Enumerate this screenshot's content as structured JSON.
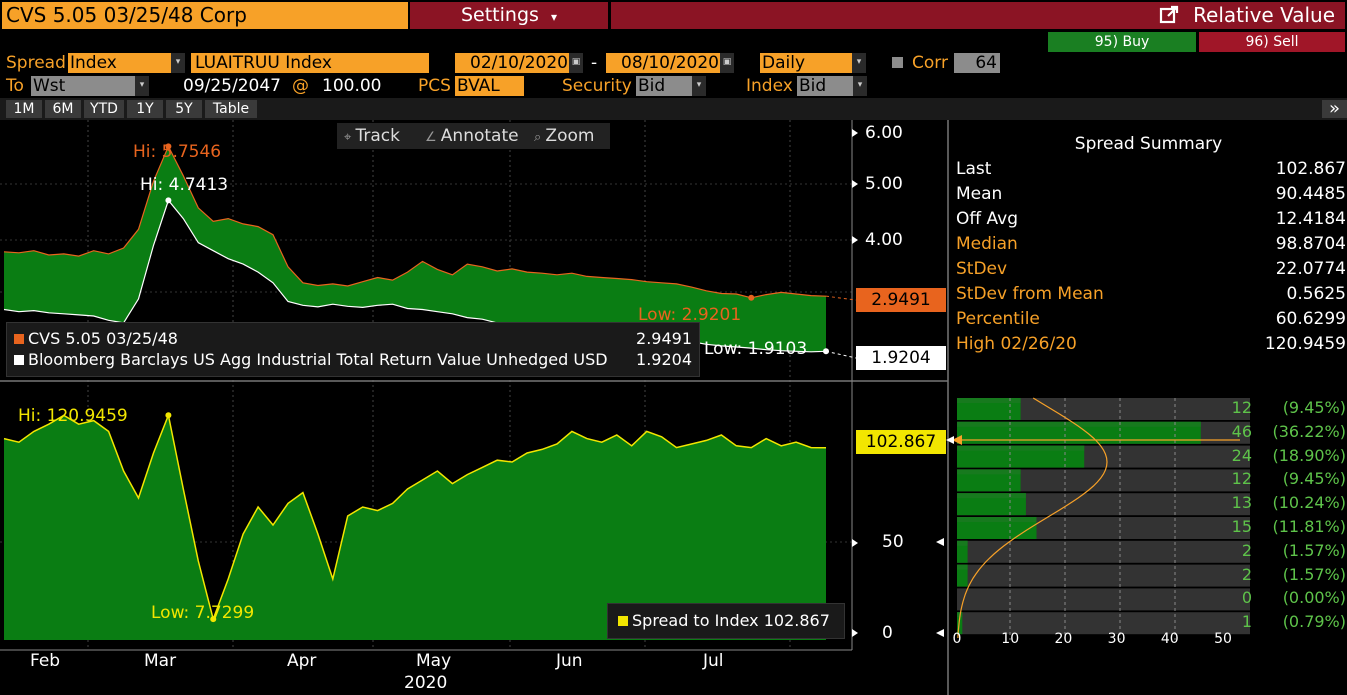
{
  "header": {
    "security": "CVS 5.05 03/25/48 Corp",
    "settings_label": "Settings",
    "settings_caret": "▾",
    "title": "Relative Value",
    "buy_label": "95) Buy",
    "sell_label": "96) Sell"
  },
  "controls": {
    "spread_label": "Spread",
    "spread_type": "Index",
    "index_name": "LUAITRUU Index",
    "start_date": "02/10/2020",
    "date_sep": "-",
    "end_date": "08/10/2020",
    "frequency": "Daily",
    "corr_label": "Corr",
    "corr_value": "64",
    "to_label": "To",
    "to_value": "Wst",
    "maturity": "09/25/2047",
    "at_sign": "@",
    "price": "100.00",
    "pcs_label": "PCS",
    "pcs_value": "BVAL",
    "security_label": "Security",
    "security_side": "Bid",
    "index_label": "Index",
    "index_side": "Bid"
  },
  "range_buttons": [
    "1M",
    "6M",
    "YTD",
    "1Y",
    "5Y",
    "Table"
  ],
  "expand_icon": "»",
  "chart_tools": {
    "track": "Track",
    "annotate": "Annotate",
    "zoom": "Zoom"
  },
  "colors": {
    "cvs": "#e8641e",
    "index": "#ffffff",
    "spread": "#f2e600",
    "fill": "#0a7d13",
    "orange": "#f7a128",
    "buy": "#1a7f22",
    "sell": "#a01628"
  },
  "chart_data": [
    {
      "type": "line",
      "y_axis_ticks": [
        "6.00",
        "5.00",
        "4.00"
      ],
      "ylim": [
        1.6,
        6.2
      ],
      "series": [
        {
          "name": "CVS 5.05 03/25/48",
          "last": "2.9491",
          "hi_label": "Hi: 5.7546",
          "low_label": "Low: 2.9201",
          "values": [
            3.78,
            3.76,
            3.8,
            3.72,
            3.74,
            3.7,
            3.8,
            3.74,
            3.85,
            4.2,
            5.1,
            5.75,
            5.2,
            4.6,
            4.35,
            4.4,
            4.3,
            4.25,
            4.1,
            3.5,
            3.2,
            3.15,
            3.18,
            3.14,
            3.22,
            3.3,
            3.25,
            3.4,
            3.6,
            3.45,
            3.35,
            3.55,
            3.5,
            3.42,
            3.46,
            3.4,
            3.38,
            3.35,
            3.38,
            3.32,
            3.3,
            3.28,
            3.26,
            3.22,
            3.2,
            3.18,
            3.12,
            3.05,
            3.0,
            2.99,
            2.92,
            2.98,
            3.02,
            2.99,
            2.96,
            2.95
          ]
        },
        {
          "name": "Bloomberg Barclays US Agg Industrial Total Return Value Unhedged USD",
          "last": "1.9204",
          "hi_label": "Hi: 4.7413",
          "low_label": "Low: 1.9103",
          "values": [
            2.7,
            2.66,
            2.68,
            2.64,
            2.62,
            2.6,
            2.58,
            2.5,
            2.45,
            2.9,
            3.9,
            4.74,
            4.4,
            3.95,
            3.8,
            3.65,
            3.55,
            3.4,
            3.2,
            2.85,
            2.78,
            2.75,
            2.8,
            2.76,
            2.74,
            2.78,
            2.8,
            2.72,
            2.7,
            2.66,
            2.62,
            2.55,
            2.52,
            2.45,
            2.42,
            2.4,
            2.38,
            2.36,
            2.34,
            2.3,
            2.26,
            2.22,
            2.2,
            2.18,
            2.15,
            2.12,
            2.1,
            2.05,
            2.02,
            2.0,
            1.98,
            1.95,
            1.93,
            1.92,
            1.91,
            1.92
          ]
        }
      ]
    },
    {
      "type": "area",
      "y_axis_ticks": [
        "50",
        "0"
      ],
      "ylim": [
        0,
        130
      ],
      "series": [
        {
          "name": "Spread to Index",
          "last": "102.867",
          "hi_label": "Hi: 120.9459",
          "low_label": "Low: 7.7299",
          "values": [
            108,
            106,
            112,
            116,
            120.9,
            116,
            118,
            112,
            90,
            75,
            100,
            121,
            80,
            40,
            7.7,
            30,
            55,
            70,
            60,
            72,
            78,
            55,
            30,
            65,
            70,
            68,
            72,
            80,
            85,
            90,
            83,
            88,
            92,
            96,
            95,
            100,
            102,
            105,
            112,
            108,
            106,
            110,
            104,
            112,
            109,
            103,
            105,
            107,
            110,
            104,
            103,
            108,
            104,
            106,
            103,
            102.867
          ]
        }
      ],
      "legend_label": "Spread to Index 102.867"
    },
    {
      "type": "bar",
      "orientation": "horizontal",
      "x_axis_ticks": [
        "0",
        "10",
        "20",
        "30",
        "40",
        "50"
      ],
      "values": [
        12,
        46,
        24,
        12,
        13,
        15,
        2,
        2,
        0,
        1
      ],
      "labels": [
        "12",
        "46",
        "24",
        "12",
        "13",
        "15",
        "2",
        "2",
        "0",
        "1"
      ],
      "percents": [
        "(9.45%)",
        "(36.22%)",
        "(18.90%)",
        "(9.45%)",
        "(10.24%)",
        "(11.81%)",
        "(1.57%)",
        "(1.57%)",
        "(0.00%)",
        "(0.79%)"
      ]
    }
  ],
  "x_axis": {
    "months": [
      "Feb",
      "Mar",
      "Apr",
      "May",
      "Jun",
      "Jul"
    ],
    "year": "2020"
  },
  "summary": {
    "title": "Spread Summary",
    "rows": [
      {
        "k": "Last",
        "v": "102.867",
        "c": "w"
      },
      {
        "k": "Mean",
        "v": "90.4485",
        "c": "w"
      },
      {
        "k": "Off Avg",
        "v": "12.4184",
        "c": "w"
      },
      {
        "k": "Median",
        "v": "98.8704",
        "c": "o"
      },
      {
        "k": "StDev",
        "v": "22.0774",
        "c": "o"
      },
      {
        "k": "StDev from Mean",
        "v": "0.5625",
        "c": "o"
      },
      {
        "k": "Percentile",
        "v": "60.6299",
        "c": "o"
      },
      {
        "k": "High 02/26/20",
        "v": "120.9459",
        "c": "o"
      }
    ]
  }
}
